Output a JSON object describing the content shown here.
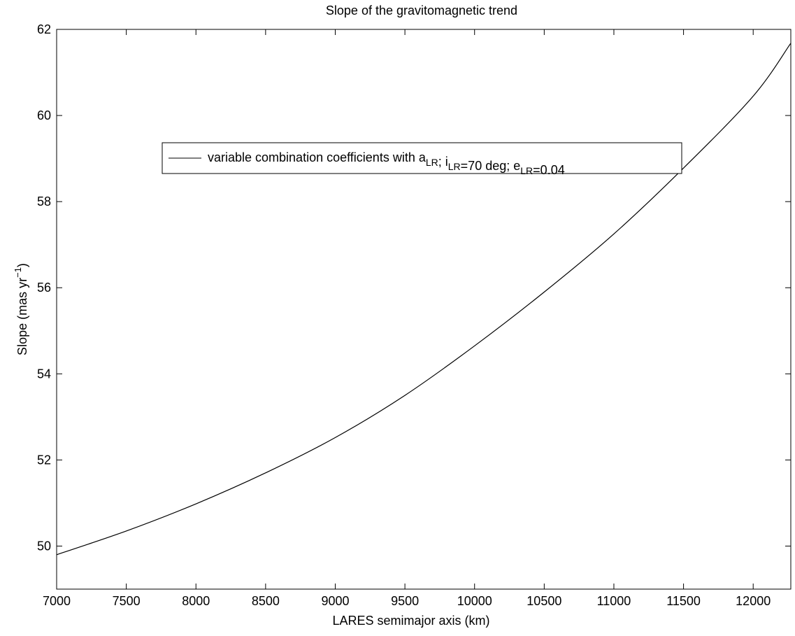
{
  "chart_data": {
    "type": "line",
    "title": "Slope of the gravitomagnetic trend",
    "xlabel": "LARES semimajor axis (km)",
    "ylabel": {
      "text": "Slope (mas yr",
      "superscript": "−1",
      "suffix": ")"
    },
    "xlim": [
      7000,
      12270
    ],
    "ylim": [
      49,
      62
    ],
    "xticks": [
      7000,
      7500,
      8000,
      8500,
      9000,
      9500,
      10000,
      10500,
      11000,
      11500,
      12000
    ],
    "yticks": [
      50,
      52,
      54,
      56,
      58,
      60,
      62
    ],
    "grid": false,
    "legend_position": "upper-center",
    "legend": {
      "parts": [
        {
          "text": "variable combination coefficients with a",
          "sub": "LR"
        },
        {
          "text": "; i",
          "sub": "LR"
        },
        {
          "text": "=70 deg; e",
          "sub": "LR"
        },
        {
          "text": "=0.04",
          "sub": ""
        }
      ]
    },
    "series": [
      {
        "line_color": "#000000",
        "x": [
          7000,
          7500,
          8000,
          8500,
          9000,
          9500,
          10000,
          10500,
          11000,
          11500,
          12000,
          12270
        ],
        "y": [
          49.8,
          50.35,
          50.98,
          51.7,
          52.52,
          53.5,
          54.65,
          55.9,
          57.25,
          58.78,
          60.45,
          61.68
        ]
      }
    ]
  }
}
